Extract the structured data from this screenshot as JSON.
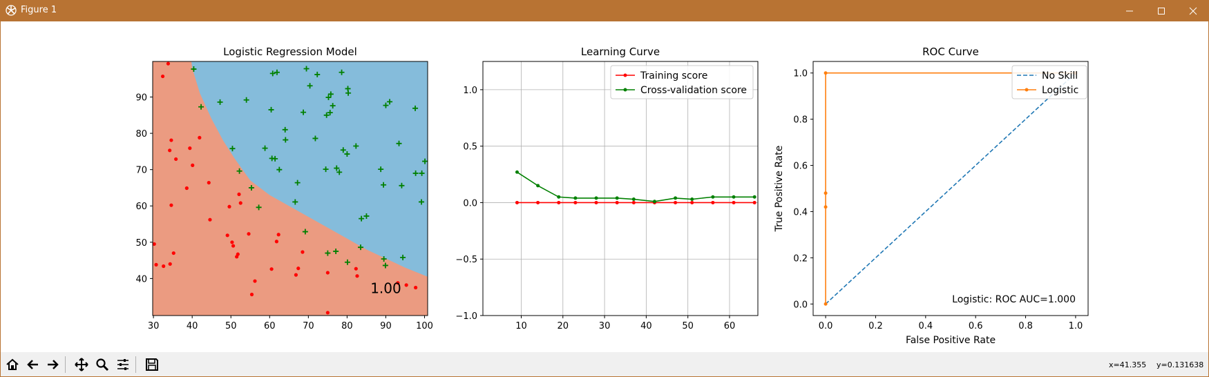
{
  "window": {
    "title": "Figure 1"
  },
  "status": {
    "x": "x=41.355",
    "y": "y=0.131638"
  },
  "toolbar": {
    "items": [
      "home-icon",
      "back-arrow-icon",
      "forward-arrow-icon",
      "pan-icon",
      "zoom-icon",
      "configure-subplots-icon",
      "save-icon"
    ]
  },
  "chart_data": [
    {
      "type": "scatter",
      "title": "Logistic Regression Model",
      "xlabel": "",
      "ylabel": "",
      "xlim": [
        29.8,
        100.8
      ],
      "ylim": [
        29.8,
        99.8
      ],
      "xticks": [
        "30",
        "40",
        "50",
        "60",
        "70",
        "80",
        "90",
        "100"
      ],
      "xtick_values": [
        30,
        40,
        50,
        60,
        70,
        80,
        90,
        100
      ],
      "yticks": [
        "40",
        "50",
        "60",
        "70",
        "80",
        "90"
      ],
      "ytick_values": [
        40,
        50,
        60,
        70,
        80,
        90
      ],
      "annotation": "1.00",
      "annotation_pos": [
        90,
        36
      ],
      "background_regions": {
        "class0_color": "#eb9b81",
        "class1_color": "#85bcdb",
        "boundary": [
          [
            39.8,
            99.8
          ],
          [
            40,
            98
          ],
          [
            42,
            91
          ],
          [
            45,
            84
          ],
          [
            48,
            78
          ],
          [
            51,
            73
          ],
          [
            55,
            67
          ],
          [
            60,
            63
          ],
          [
            65,
            60
          ],
          [
            70,
            57
          ],
          [
            75,
            54
          ],
          [
            80,
            51
          ],
          [
            85,
            48
          ],
          [
            90,
            45.5
          ],
          [
            95,
            43
          ],
          [
            100.8,
            40.5
          ]
        ]
      },
      "series": [
        {
          "name": "",
          "marker": "dot",
          "color": "#ff0000",
          "points": [
            [
              30.2,
              49.5
            ],
            [
              30.7,
              43.8
            ],
            [
              32.4,
              95.7
            ],
            [
              32.6,
              43.4
            ],
            [
              33.8,
              99.2
            ],
            [
              34.2,
              75.3
            ],
            [
              34.3,
              44.0
            ],
            [
              34.6,
              78.1
            ],
            [
              34.6,
              60.2
            ],
            [
              35.2,
              47.0
            ],
            [
              35.8,
              72.9
            ],
            [
              38.6,
              64.9
            ],
            [
              39.4,
              75.9
            ],
            [
              40.1,
              71.2
            ],
            [
              41.9,
              78.8
            ],
            [
              44.3,
              66.4
            ],
            [
              44.6,
              56.2
            ],
            [
              49.1,
              51.9
            ],
            [
              49.6,
              59.8
            ],
            [
              50.3,
              50.0
            ],
            [
              50.6,
              49.0
            ],
            [
              51.5,
              46.0
            ],
            [
              51.8,
              46.7
            ],
            [
              52.1,
              63.2
            ],
            [
              52.5,
              60.8
            ],
            [
              54.6,
              52.3
            ],
            [
              55.4,
              35.6
            ],
            [
              56.2,
              39.3
            ],
            [
              60.5,
              42.6
            ],
            [
              61.8,
              50.2
            ],
            [
              62.3,
              52.1
            ],
            [
              66.8,
              41.0
            ],
            [
              67.4,
              42.8
            ],
            [
              68.5,
              47.3
            ],
            [
              75.0,
              41.6
            ],
            [
              75.0,
              30.6
            ],
            [
              82.3,
              42.7
            ],
            [
              82.6,
              40.7
            ],
            [
              93.1,
              38.8
            ],
            [
              95.3,
              38.2
            ],
            [
              97.7,
              37.5
            ]
          ]
        },
        {
          "name": "",
          "marker": "plus",
          "color": "#008000",
          "points": [
            [
              40.4,
              97.7
            ],
            [
              42.3,
              87.3
            ],
            [
              47.2,
              88.6
            ],
            [
              50.4,
              75.8
            ],
            [
              52.2,
              69.6
            ],
            [
              54.0,
              89.2
            ],
            [
              55.3,
              65.0
            ],
            [
              57.2,
              59.6
            ],
            [
              58.8,
              75.9
            ],
            [
              60.4,
              86.5
            ],
            [
              60.6,
              73.1
            ],
            [
              60.8,
              96.5
            ],
            [
              61.4,
              73.0
            ],
            [
              61.9,
              96.8
            ],
            [
              62.5,
              70.0
            ],
            [
              64.0,
              81.0
            ],
            [
              64.1,
              78.2
            ],
            [
              66.6,
              61.1
            ],
            [
              67.2,
              66.4
            ],
            [
              68.7,
              85.8
            ],
            [
              69.2,
              52.9
            ],
            [
              69.5,
              97.8
            ],
            [
              70.4,
              93.1
            ],
            [
              71.8,
              78.6
            ],
            [
              72.3,
              96.2
            ],
            [
              74.5,
              70.1
            ],
            [
              74.7,
              85.0
            ],
            [
              75.0,
              47.0
            ],
            [
              75.2,
              89.9
            ],
            [
              75.6,
              85.7
            ],
            [
              75.8,
              90.8
            ],
            [
              76.3,
              87.6
            ],
            [
              77.1,
              47.5
            ],
            [
              77.3,
              70.4
            ],
            [
              78.0,
              69.3
            ],
            [
              78.6,
              96.8
            ],
            [
              79.0,
              75.4
            ],
            [
              80.1,
              44.5
            ],
            [
              80.2,
              92.3
            ],
            [
              80.3,
              91.1
            ],
            [
              80.0,
              74.3
            ],
            [
              82.3,
              76.5
            ],
            [
              83.5,
              48.6
            ],
            [
              83.7,
              56.5
            ],
            [
              85.0,
              57.2
            ],
            [
              88.7,
              70.1
            ],
            [
              89.4,
              65.8
            ],
            [
              89.5,
              45.4
            ],
            [
              89.9,
              43.6
            ],
            [
              90.0,
              87.7
            ],
            [
              91.0,
              88.7
            ],
            [
              93.4,
              77.2
            ],
            [
              94.1,
              65.6
            ],
            [
              94.4,
              45.8
            ],
            [
              97.6,
              86.9
            ],
            [
              97.7,
              69.0
            ],
            [
              99.2,
              61.1
            ],
            [
              99.3,
              69.0
            ],
            [
              100.1,
              72.3
            ]
          ]
        }
      ]
    },
    {
      "type": "line",
      "title": "Learning Curve",
      "xlabel": "",
      "ylabel": "",
      "xlim": [
        0.8,
        66.8
      ],
      "ylim": [
        -1.0,
        1.25
      ],
      "xticks": [
        "10",
        "20",
        "30",
        "40",
        "50",
        "60"
      ],
      "xtick_values": [
        10,
        20,
        30,
        40,
        50,
        60
      ],
      "yticks": [
        "1.0",
        "0.5",
        "0.0",
        "−0.5",
        "−1.0"
      ],
      "ytick_values": [
        1.0,
        0.5,
        0.0,
        -0.5,
        -1.0
      ],
      "grid": true,
      "legend": "top-right",
      "x": [
        9,
        14,
        19,
        23,
        28,
        33,
        37,
        42,
        47,
        51,
        56,
        61,
        66
      ],
      "series": [
        {
          "name": "Training score",
          "color": "#ff0000",
          "values": [
            0,
            0,
            0,
            0,
            0,
            0,
            0,
            0,
            0,
            0,
            0,
            0,
            0
          ]
        },
        {
          "name": "Cross-validation score",
          "color": "#008000",
          "values": [
            0.27,
            0.15,
            0.05,
            0.04,
            0.04,
            0.04,
            0.03,
            0.01,
            0.04,
            0.03,
            0.05,
            0.05,
            0.05
          ]
        }
      ]
    },
    {
      "type": "line",
      "title": "ROC Curve",
      "xlabel": "False Positive Rate",
      "ylabel": "True Positive Rate",
      "xlim": [
        -0.05,
        1.05
      ],
      "ylim": [
        -0.05,
        1.05
      ],
      "xticks": [
        "0.0",
        "0.2",
        "0.4",
        "0.6",
        "0.8",
        "1.0"
      ],
      "xtick_values": [
        0,
        0.2,
        0.4,
        0.6,
        0.8,
        1.0
      ],
      "yticks": [
        "0.0",
        "0.2",
        "0.4",
        "0.6",
        "0.8",
        "1.0"
      ],
      "ytick_values": [
        0,
        0.2,
        0.4,
        0.6,
        0.8,
        1.0
      ],
      "legend": "top-right",
      "annotation": "Logistic: ROC AUC=1.000",
      "series": [
        {
          "name": "No Skill",
          "color": "#1f77b4",
          "style": "dashed",
          "x": [
            0,
            1
          ],
          "values": [
            0,
            1
          ]
        },
        {
          "name": "Logistic",
          "color": "#ff7f0e",
          "style": "solid",
          "markers": true,
          "x": [
            0,
            0,
            0,
            0,
            1
          ],
          "values": [
            0,
            0.42,
            0.48,
            1.0,
            1.0
          ]
        }
      ]
    }
  ]
}
